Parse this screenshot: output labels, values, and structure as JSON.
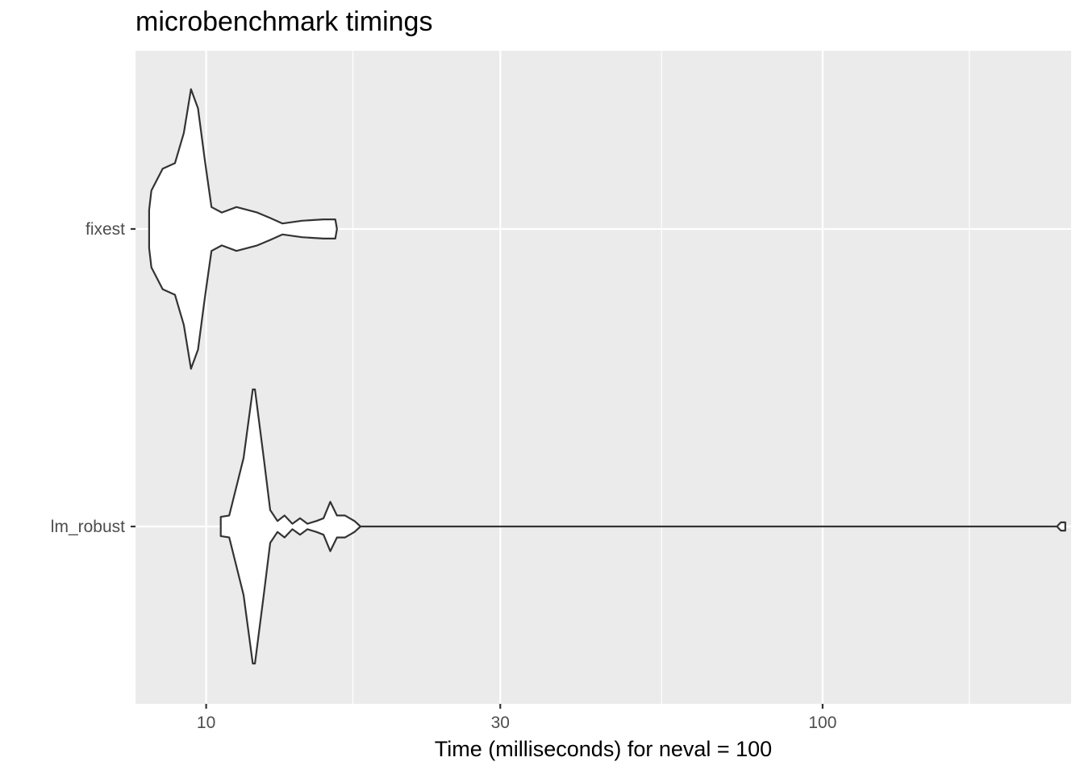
{
  "chart_data": {
    "type": "violin",
    "title": "microbenchmark timings",
    "xlabel": "Time (milliseconds) for neval = 100",
    "ylabel": "",
    "x_scale": "log10",
    "xlim": [
      7.68,
      253
    ],
    "x_major_ticks": [
      10,
      30,
      100
    ],
    "x_tick_labels": [
      "10",
      "30",
      "100"
    ],
    "x_minor_ticks": [
      17.3,
      54.8,
      173
    ],
    "categories": [
      "fixest",
      "lm_robust"
    ],
    "grid": true,
    "panel_background": "#ebebeb",
    "gridline_color": "#ffffff",
    "violin_fill": "#ffffff",
    "violin_stroke": "#333333",
    "series": [
      {
        "name": "fixest",
        "density": [
          [
            8.08,
            0.07
          ],
          [
            8.15,
            0.14
          ],
          [
            8.5,
            0.22
          ],
          [
            8.9,
            0.24
          ],
          [
            9.2,
            0.35
          ],
          [
            9.45,
            0.51
          ],
          [
            9.7,
            0.44
          ],
          [
            9.95,
            0.25
          ],
          [
            10.2,
            0.08
          ],
          [
            10.6,
            0.06
          ],
          [
            11.2,
            0.08
          ],
          [
            12.1,
            0.06
          ],
          [
            12.7,
            0.04
          ],
          [
            13.3,
            0.02
          ],
          [
            14.3,
            0.03
          ],
          [
            15.5,
            0.035
          ],
          [
            16.2,
            0.035
          ],
          [
            16.3,
            0.0
          ]
        ]
      },
      {
        "name": "lm_robust",
        "density": [
          [
            10.56,
            0.0
          ],
          [
            10.56,
            0.035
          ],
          [
            10.9,
            0.04
          ],
          [
            11.5,
            0.25
          ],
          [
            11.9,
            0.5
          ],
          [
            12.0,
            0.5
          ],
          [
            12.4,
            0.25
          ],
          [
            12.7,
            0.06
          ],
          [
            13.05,
            0.02
          ],
          [
            13.4,
            0.04
          ],
          [
            13.8,
            0.01
          ],
          [
            14.2,
            0.03
          ],
          [
            14.6,
            0.01
          ],
          [
            15.1,
            0.02
          ],
          [
            15.5,
            0.03
          ],
          [
            15.9,
            0.09
          ],
          [
            16.3,
            0.04
          ],
          [
            16.8,
            0.04
          ],
          [
            17.4,
            0.02
          ],
          [
            17.8,
            0.0
          ],
          [
            50,
            0.0
          ],
          [
            240,
            0.0
          ],
          [
            243.5,
            0.015
          ],
          [
            247.6,
            0.015
          ],
          [
            247.6,
            0.0
          ]
        ]
      }
    ]
  }
}
